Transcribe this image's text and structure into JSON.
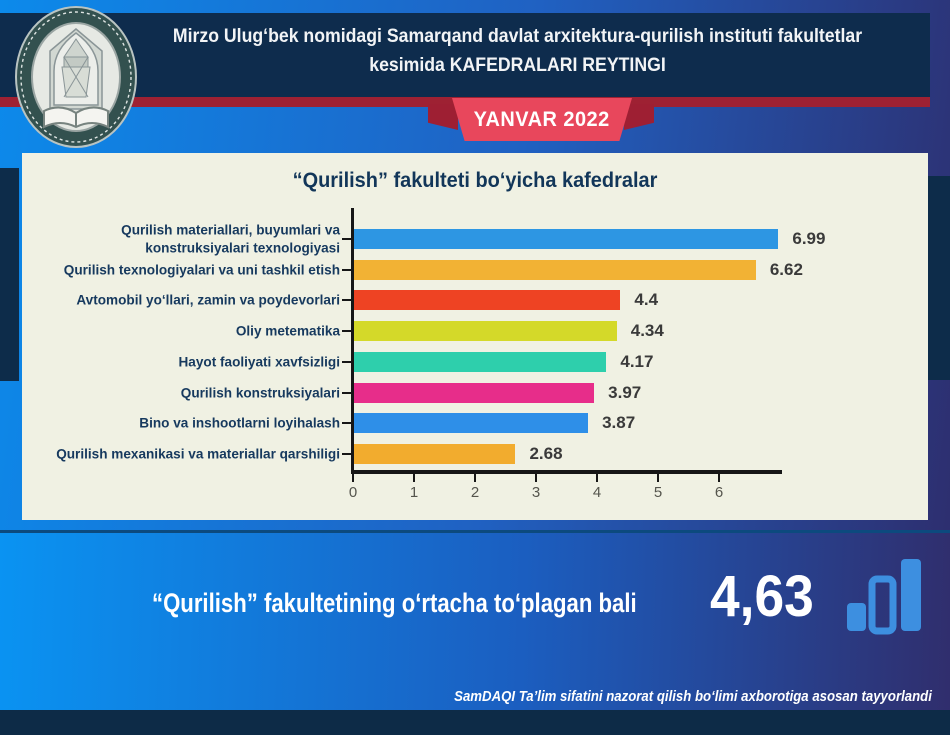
{
  "header": {
    "title_line1": "Mirzo Ulug‘bek nomidagi Samarqand davlat arxitektura-qurilish instituti fakultetlar",
    "title_line2": "kesimida KAFEDRALARI REYTINGI",
    "badge": "YANVAR 2022",
    "logo": "samdaqi-institute-emblem"
  },
  "chart_data": {
    "type": "bar",
    "orientation": "horizontal",
    "title": "“Qurilish” fakulteti bo‘yicha kafedralar",
    "categories": [
      "Qurilish materiallari, buyumlari va konstruksiyalari texnologiyasi",
      "Qurilish texnologiyalari va uni tashkil etish",
      "Avtomobil yo‘llari, zamin va poydevorlari",
      "Oliy metematika",
      "Hayot faoliyati xavfsizligi",
      "Qurilish konstruksiyalari",
      "Bino va inshootlarni loyihalash",
      "Qurilish mexanikasi va materiallar qarshiligi"
    ],
    "values": [
      6.99,
      6.62,
      4.4,
      4.34,
      4.17,
      3.97,
      3.87,
      2.68
    ],
    "value_labels": [
      "6.99",
      "6.62",
      "4.4",
      "4.34",
      "4.17",
      "3.97",
      "3.87",
      "2.68"
    ],
    "bar_colors": [
      "#2d96e3",
      "#f2b234",
      "#ee4323",
      "#d4d929",
      "#2ecfac",
      "#e72d8a",
      "#2e8fe8",
      "#f2ac2e"
    ],
    "xlim": [
      0,
      7
    ],
    "xticks": [
      "0",
      "1",
      "2",
      "3",
      "4",
      "5",
      "6"
    ],
    "grid": false,
    "legend": "none",
    "panel_background": "#f0f1e3"
  },
  "summary": {
    "label": "“Qurilish” fakultetining o‘rtacha to‘plagan bali",
    "value": "4,63",
    "icon": "bar-chart-icon"
  },
  "footer": {
    "note": "SamDAQI Ta’lim sifatini nazorat qilish bo‘limi axborotiga asosan tayyorlandi"
  },
  "theme": {
    "header_navy": "#0e2c4d",
    "stripe_red": "#9e2133",
    "ribbon_red": "#e8475c",
    "page_gradient_left": "#0c8aeb",
    "page_gradient_right": "#2e2c6b",
    "bottom_bar_navy": "#0d2b47",
    "label_navy": "#16395e",
    "value_gray": "#3a3a3a"
  }
}
